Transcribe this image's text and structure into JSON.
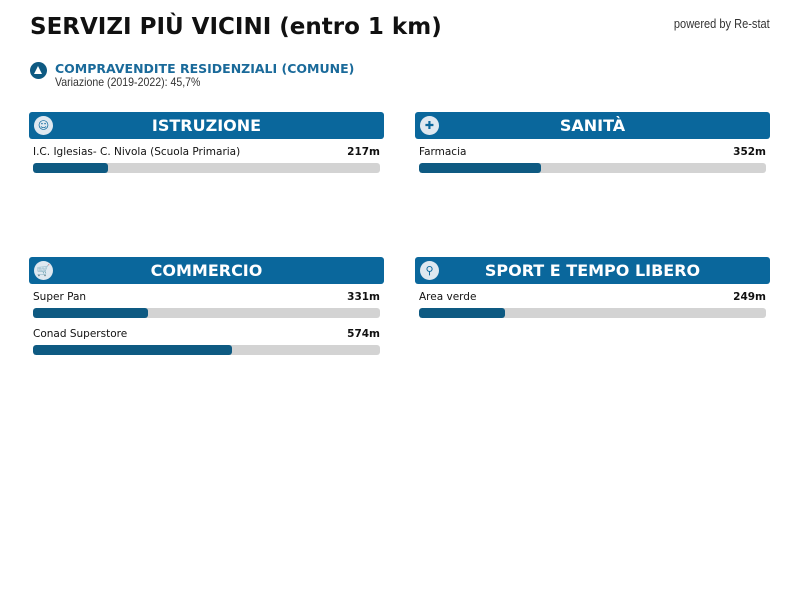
{
  "title": "SERVIZI PIÙ VICINI (entro 1 km)",
  "powered": "powered by Re-stat",
  "subtitle": {
    "label": "COMPRAVENDITE RESIDENZIALI (COMUNE)",
    "detail": "Variazione (2019-2022): 45,7%",
    "icon": "triangle-up-icon"
  },
  "colors": {
    "header": "#0a679c",
    "bar_fill": "#0e5a82",
    "bar_track": "#d3d3d3"
  },
  "max_distance_m": 1000,
  "sections": [
    {
      "title": "ISTRUZIONE",
      "icon": "teacher-icon",
      "items": [
        {
          "name": "I.C. Iglesias- C. Nivola (Scuola Primaria)",
          "distance": "217m",
          "value": 217
        }
      ]
    },
    {
      "title": "SANITÀ",
      "icon": "pharmacy-icon",
      "items": [
        {
          "name": "Farmacia",
          "distance": "352m",
          "value": 352
        }
      ]
    },
    {
      "title": "COMMERCIO",
      "icon": "cart-icon",
      "items": [
        {
          "name": "Super Pan",
          "distance": "331m",
          "value": 331
        },
        {
          "name": "Conad Superstore",
          "distance": "574m",
          "value": 574
        }
      ]
    },
    {
      "title": "SPORT E TEMPO LIBERO",
      "icon": "racket-icon",
      "items": [
        {
          "name": "Area verde",
          "distance": "249m",
          "value": 249
        }
      ]
    }
  ]
}
